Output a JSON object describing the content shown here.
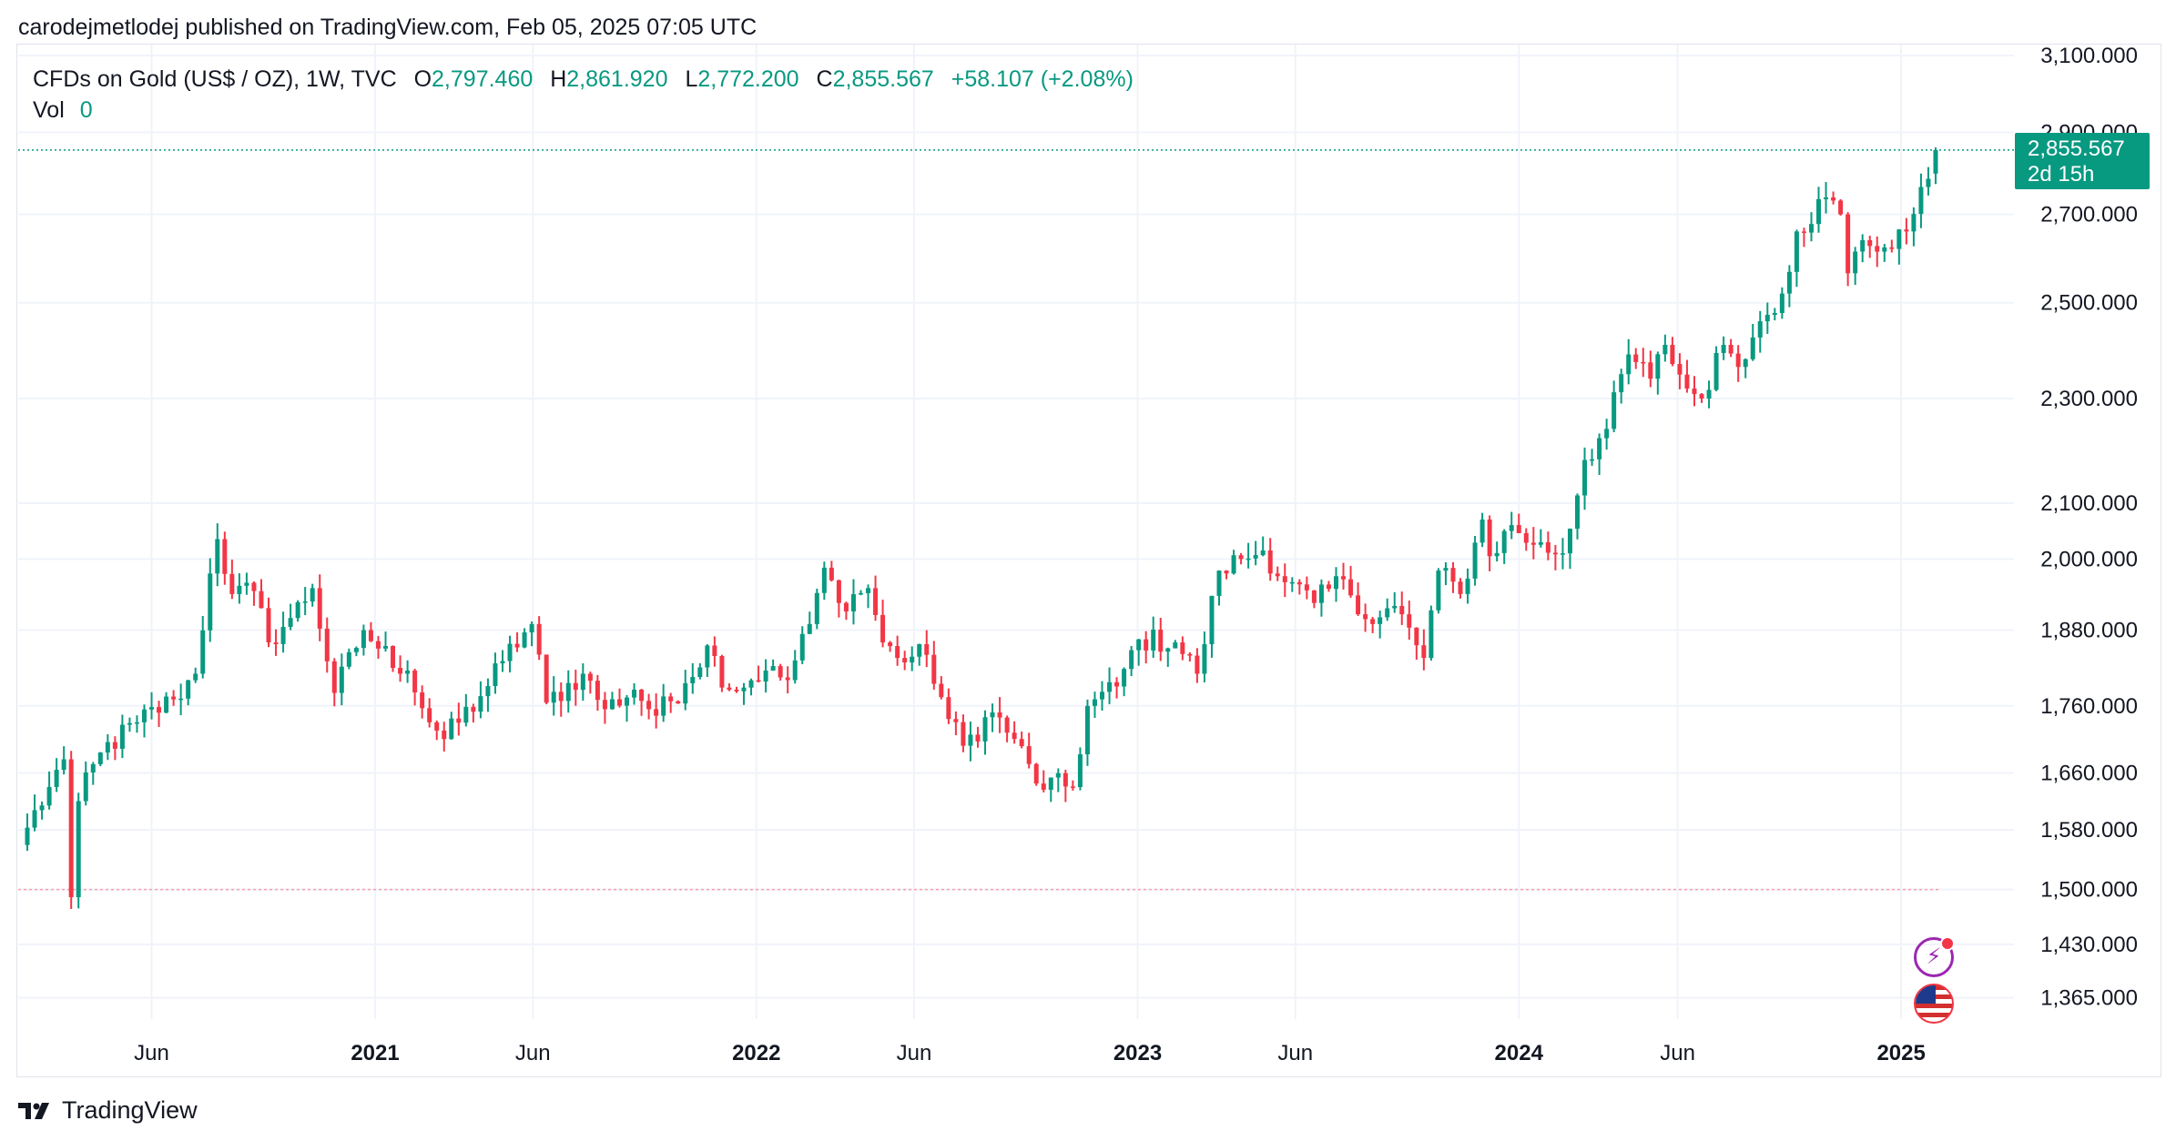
{
  "header": {
    "published_line": "carodejmetlodej published on TradingView.com, Feb 05, 2025 07:05 UTC"
  },
  "legend": {
    "symbol": "CFDs on Gold (US$ / OZ), 1W, TVC",
    "open_label": "O",
    "open": "2,797.460",
    "high_label": "H",
    "high": "2,861.920",
    "low_label": "L",
    "low": "2,772.200",
    "close_label": "C",
    "close": "2,855.567",
    "change": "+58.107 (+2.08%)",
    "vol_label": "Vol",
    "vol": "0"
  },
  "price_badge": {
    "price": "2,855.567",
    "countdown": "2d 15h"
  },
  "footer": {
    "brand": "TradingView"
  },
  "icons": {
    "events": "lightning-icon",
    "country": "us-flag-icon"
  },
  "colors": {
    "up": "#089981",
    "down": "#f23645",
    "grid": "#f0f3fa",
    "text": "#131722"
  },
  "chart_data": {
    "type": "candlestick",
    "title": "CFDs on Gold (US$ / OZ), 1W, TVC",
    "x_tick_labels": [
      {
        "label": "Jun",
        "date": "2020-06-01",
        "bold": false
      },
      {
        "label": "2021",
        "date": "2021-01-01",
        "bold": true
      },
      {
        "label": "Jun",
        "date": "2021-06-01",
        "bold": false
      },
      {
        "label": "2022",
        "date": "2022-01-01",
        "bold": true
      },
      {
        "label": "Jun",
        "date": "2022-06-01",
        "bold": false
      },
      {
        "label": "2023",
        "date": "2023-01-01",
        "bold": true
      },
      {
        "label": "Jun",
        "date": "2023-06-01",
        "bold": false
      },
      {
        "label": "2024",
        "date": "2024-01-01",
        "bold": true
      },
      {
        "label": "Jun",
        "date": "2024-06-01",
        "bold": false
      },
      {
        "label": "2025",
        "date": "2025-01-01",
        "bold": true
      }
    ],
    "y_tick_labels": [
      "3,100.000",
      "2,900.000",
      "2,700.000",
      "2,500.000",
      "2,300.000",
      "2,100.000",
      "2,000.000",
      "1,880.000",
      "1,760.000",
      "1,660.000",
      "1,580.000",
      "1,500.000",
      "1,430.000",
      "1,365.000"
    ],
    "y_ticks": [
      3100,
      2900,
      2700,
      2500,
      2300,
      2100,
      2000,
      1880,
      1760,
      1660,
      1580,
      1500,
      1430,
      1365
    ],
    "y_scale": "log",
    "x_range": [
      "2020-02-03",
      "2025-02-03"
    ],
    "y_range": [
      1340,
      3130
    ],
    "last_price_line": 2855.567,
    "reference_line": 1500,
    "anchors": [
      [
        "2020-02-03",
        1583
      ],
      [
        "2020-02-24",
        1640
      ],
      [
        "2020-03-09",
        1680
      ],
      [
        "2020-03-16",
        1490
      ],
      [
        "2020-03-23",
        1620
      ],
      [
        "2020-04-13",
        1690
      ],
      [
        "2020-05-18",
        1735
      ],
      [
        "2020-06-22",
        1770
      ],
      [
        "2020-07-13",
        1810
      ],
      [
        "2020-07-27",
        1975
      ],
      [
        "2020-08-03",
        2035
      ],
      [
        "2020-08-17",
        1940
      ],
      [
        "2020-09-07",
        1945
      ],
      [
        "2020-09-21",
        1860
      ],
      [
        "2020-10-12",
        1900
      ],
      [
        "2020-11-02",
        1950
      ],
      [
        "2020-11-23",
        1780
      ],
      [
        "2020-12-21",
        1880
      ],
      [
        "2021-01-04",
        1850
      ],
      [
        "2021-02-01",
        1815
      ],
      [
        "2021-02-22",
        1735
      ],
      [
        "2021-03-08",
        1710
      ],
      [
        "2021-04-12",
        1775
      ],
      [
        "2021-05-03",
        1830
      ],
      [
        "2021-05-31",
        1890
      ],
      [
        "2021-06-14",
        1765
      ],
      [
        "2021-07-19",
        1810
      ],
      [
        "2021-08-09",
        1755
      ],
      [
        "2021-09-06",
        1785
      ],
      [
        "2021-09-27",
        1745
      ],
      [
        "2021-10-25",
        1795
      ],
      [
        "2021-11-15",
        1855
      ],
      [
        "2021-12-06",
        1785
      ],
      [
        "2022-01-10",
        1815
      ],
      [
        "2022-01-31",
        1800
      ],
      [
        "2022-02-21",
        1890
      ],
      [
        "2022-03-07",
        1985
      ],
      [
        "2022-03-21",
        1925
      ],
      [
        "2022-04-18",
        1950
      ],
      [
        "2022-05-02",
        1860
      ],
      [
        "2022-05-16",
        1835
      ],
      [
        "2022-06-13",
        1840
      ],
      [
        "2022-07-04",
        1740
      ],
      [
        "2022-07-18",
        1700
      ],
      [
        "2022-08-15",
        1750
      ],
      [
        "2022-09-05",
        1710
      ],
      [
        "2022-09-26",
        1645
      ],
      [
        "2022-10-31",
        1640
      ],
      [
        "2022-11-14",
        1760
      ],
      [
        "2022-12-12",
        1790
      ],
      [
        "2023-01-02",
        1865
      ],
      [
        "2023-02-06",
        1860
      ],
      [
        "2023-02-27",
        1810
      ],
      [
        "2023-03-20",
        1980
      ],
      [
        "2023-04-10",
        2000
      ],
      [
        "2023-05-01",
        2015
      ],
      [
        "2023-05-22",
        1960
      ],
      [
        "2023-06-19",
        1925
      ],
      [
        "2023-07-17",
        1965
      ],
      [
        "2023-08-14",
        1890
      ],
      [
        "2023-09-04",
        1920
      ],
      [
        "2023-10-02",
        1835
      ],
      [
        "2023-10-16",
        1980
      ],
      [
        "2023-11-06",
        1940
      ],
      [
        "2023-11-27",
        2070
      ],
      [
        "2023-12-04",
        2005
      ],
      [
        "2023-12-25",
        2060
      ],
      [
        "2024-01-15",
        2025
      ],
      [
        "2024-02-12",
        2010
      ],
      [
        "2024-03-04",
        2180
      ],
      [
        "2024-03-25",
        2240
      ],
      [
        "2024-04-15",
        2390
      ],
      [
        "2024-05-06",
        2340
      ],
      [
        "2024-05-20",
        2410
      ],
      [
        "2024-06-10",
        2320
      ],
      [
        "2024-06-24",
        2300
      ],
      [
        "2024-07-15",
        2410
      ],
      [
        "2024-08-05",
        2380
      ],
      [
        "2024-08-19",
        2460
      ],
      [
        "2024-09-09",
        2520
      ],
      [
        "2024-09-23",
        2660
      ],
      [
        "2024-10-21",
        2740
      ],
      [
        "2024-11-04",
        2700
      ],
      [
        "2024-11-11",
        2565
      ],
      [
        "2024-11-25",
        2640
      ],
      [
        "2024-12-23",
        2620
      ],
      [
        "2025-01-06",
        2660
      ],
      [
        "2025-01-20",
        2765
      ],
      [
        "2025-02-03",
        2855.567
      ]
    ],
    "last_candle": {
      "date": "2025-02-03",
      "open": 2797.46,
      "high": 2861.92,
      "low": 2772.2,
      "close": 2855.567
    }
  }
}
